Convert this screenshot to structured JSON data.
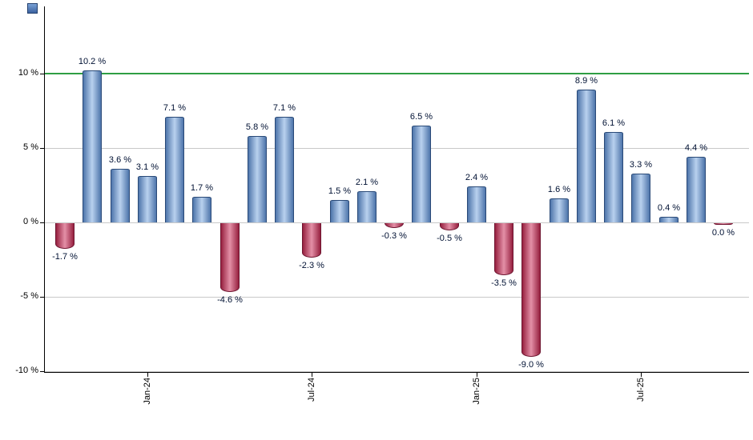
{
  "chart_data": {
    "type": "bar",
    "title": "",
    "values": [
      -1.7,
      10.2,
      3.6,
      3.1,
      7.1,
      1.7,
      -4.6,
      5.8,
      7.1,
      -2.3,
      1.5,
      2.1,
      -0.3,
      6.5,
      -0.5,
      2.4,
      -3.5,
      -9.0,
      1.6,
      8.9,
      6.1,
      3.3,
      0.4,
      4.4,
      0.0
    ],
    "bar_labels": [
      "-1.7 %",
      "10.2 %",
      "3.6 %",
      "3.1 %",
      "7.1 %",
      "1.7 %",
      "-4.6 %",
      "5.8 %",
      "7.1 %",
      "-2.3 %",
      "1.5 %",
      "2.1 %",
      "-0.3 %",
      "6.5 %",
      "-0.5 %",
      "2.4 %",
      "-3.5 %",
      "-9.0 %",
      "1.6 %",
      "8.9 %",
      "6.1 %",
      "3.3 %",
      "0.4 %",
      "4.4 %",
      "0.0 %"
    ],
    "x_ticks": [
      {
        "bar_index": 3,
        "label": "Jan-24"
      },
      {
        "bar_index": 9,
        "label": "Jul-24"
      },
      {
        "bar_index": 15,
        "label": "Jan-25"
      },
      {
        "bar_index": 21,
        "label": "Jul-25"
      }
    ],
    "y_ticks": [
      {
        "value": 10,
        "label": "10 %"
      },
      {
        "value": 5,
        "label": "5 %"
      },
      {
        "value": 0,
        "label": "0 %"
      },
      {
        "value": -5,
        "label": "-5 %"
      },
      {
        "value": -10,
        "label": "-10 %"
      }
    ],
    "ylim": [
      -10.1,
      14.5
    ],
    "grid": true,
    "legend": "none",
    "reference_line": {
      "value": 10,
      "color": "#2f9e44"
    },
    "colors": {
      "positive_bar_center": "#b9d1ee",
      "positive_bar_edge": "#4e75ab",
      "positive_bar_border": "#2a4a78",
      "negative_bar_center": "#e490a7",
      "negative_bar_edge": "#96203f",
      "negative_bar_border": "#6e1530",
      "gridline": "#c9c9c9",
      "axis": "#000000",
      "bar_label_text": "#001133",
      "background": "#ffffff"
    }
  },
  "icons": {
    "chart_marker_icon": "blue-square"
  }
}
